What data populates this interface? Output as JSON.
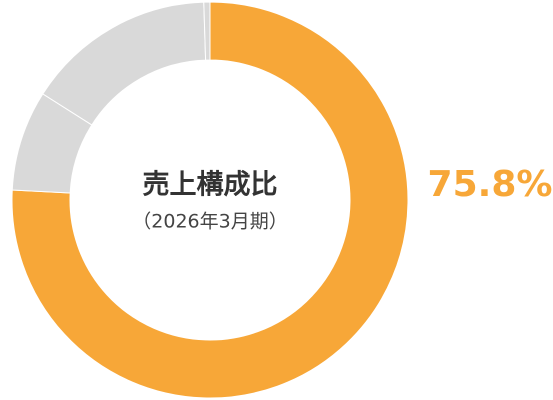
{
  "chart_data": {
    "type": "donut",
    "title": "売上構成比",
    "subtitle": "（2026年3月期）",
    "values": [
      75.8,
      8.2,
      15.5,
      0.5
    ],
    "value_labels": [
      "75.8%",
      null,
      null,
      null
    ],
    "colors": [
      "#f7a738",
      "#d9d9d9",
      "#d9d9d9",
      "#d9d9d9"
    ]
  }
}
